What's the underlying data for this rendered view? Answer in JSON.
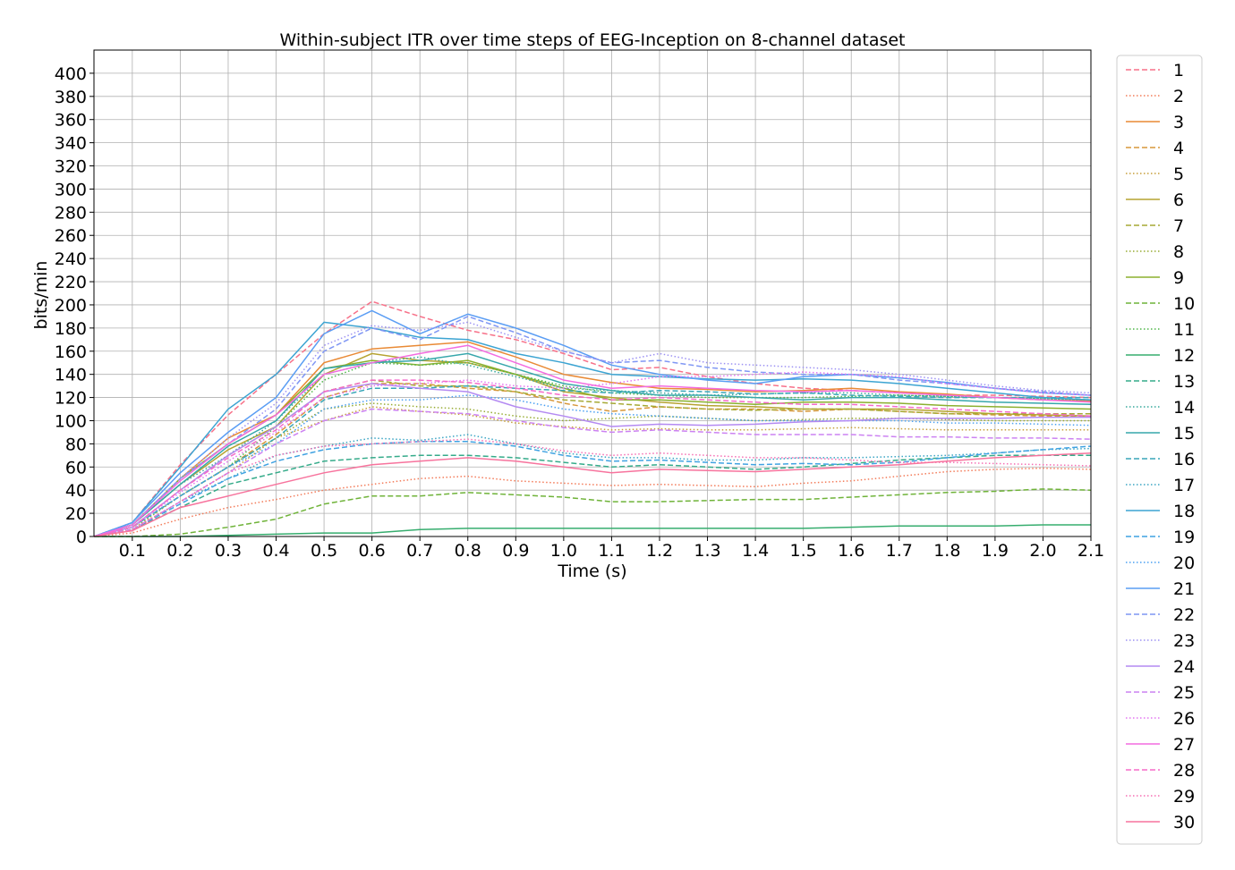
{
  "chart_data": {
    "type": "line",
    "title": "Within-subject ITR over time steps of EEG-Inception on 8-channel dataset",
    "xlabel": "Time (s)",
    "ylabel": "bits/min",
    "xlim": [
      0.02,
      2.1
    ],
    "ylim": [
      0,
      420
    ],
    "x_ticks": [
      0.1,
      0.2,
      0.3,
      0.4,
      0.5,
      0.6,
      0.7,
      0.8,
      0.9,
      1.0,
      1.1,
      1.2,
      1.3,
      1.4,
      1.5,
      1.6,
      1.7,
      1.8,
      1.9,
      2.0,
      2.1
    ],
    "x_tick_labels": [
      "0.1",
      "0.2",
      "0.3",
      "0.4",
      "0.5",
      "0.6",
      "0.7",
      "0.8",
      "0.9",
      "1.0",
      "1.1",
      "1.2",
      "1.3",
      "1.4",
      "1.5",
      "1.6",
      "1.7",
      "1.8",
      "1.9",
      "2.0",
      "2.1"
    ],
    "y_ticks": [
      0,
      20,
      40,
      60,
      80,
      100,
      120,
      140,
      160,
      180,
      200,
      220,
      240,
      260,
      280,
      300,
      320,
      340,
      360,
      380,
      400
    ],
    "y_tick_labels": [
      "0",
      "20",
      "40",
      "60",
      "80",
      "100",
      "120",
      "140",
      "160",
      "180",
      "200",
      "220",
      "240",
      "260",
      "280",
      "300",
      "320",
      "340",
      "360",
      "380",
      "400"
    ],
    "grid": true,
    "legend_position": "outside-right",
    "x": [
      0.02,
      0.1,
      0.2,
      0.3,
      0.4,
      0.5,
      0.6,
      0.7,
      0.8,
      0.9,
      1.0,
      1.1,
      1.2,
      1.3,
      1.4,
      1.5,
      1.6,
      1.7,
      1.8,
      1.9,
      2.0,
      2.1
    ],
    "series": [
      {
        "name": "1",
        "color": "#f77189",
        "dash": "dashed",
        "values": [
          0,
          12,
          62,
          105,
          140,
          175,
          203,
          190,
          178,
          170,
          158,
          144,
          146,
          138,
          132,
          128,
          126,
          124,
          122,
          122,
          121,
          120
        ]
      },
      {
        "name": "2",
        "color": "#f37b59",
        "dash": "dotted",
        "values": [
          0,
          3,
          15,
          25,
          32,
          40,
          45,
          50,
          52,
          48,
          46,
          44,
          45,
          44,
          43,
          46,
          48,
          52,
          56,
          58,
          59,
          58
        ]
      },
      {
        "name": "3",
        "color": "#e98a35",
        "dash": "solid",
        "values": [
          0,
          10,
          50,
          85,
          105,
          150,
          162,
          165,
          168,
          155,
          140,
          133,
          128,
          127,
          125,
          126,
          128,
          125,
          123,
          120,
          118,
          117
        ]
      },
      {
        "name": "4",
        "color": "#d7973a",
        "dash": "dashed",
        "values": [
          0,
          8,
          35,
          60,
          88,
          120,
          132,
          132,
          128,
          125,
          115,
          108,
          112,
          110,
          110,
          108,
          110,
          108,
          106,
          105,
          104,
          104
        ]
      },
      {
        "name": "5",
        "color": "#c79e39",
        "dash": "dotted",
        "values": [
          0,
          5,
          30,
          55,
          85,
          100,
          112,
          108,
          105,
          98,
          95,
          92,
          93,
          92,
          92,
          93,
          94,
          93,
          92,
          92,
          92,
          92
        ]
      },
      {
        "name": "6",
        "color": "#b6a331",
        "dash": "solid",
        "values": [
          0,
          10,
          45,
          75,
          95,
          140,
          158,
          152,
          150,
          140,
          125,
          120,
          116,
          113,
          112,
          110,
          110,
          110,
          108,
          106,
          105,
          104
        ]
      },
      {
        "name": "7",
        "color": "#a6a934",
        "dash": "dashed",
        "values": [
          0,
          8,
          40,
          70,
          95,
          125,
          135,
          130,
          130,
          125,
          118,
          115,
          112,
          110,
          109,
          110,
          110,
          108,
          106,
          106,
          106,
          106
        ]
      },
      {
        "name": "8",
        "color": "#97ac33",
        "dash": "dotted",
        "values": [
          0,
          6,
          35,
          60,
          85,
          110,
          115,
          112,
          110,
          104,
          100,
          102,
          104,
          102,
          100,
          101,
          102,
          102,
          101,
          100,
          100,
          100
        ]
      },
      {
        "name": "9",
        "color": "#8bb02f",
        "dash": "solid",
        "values": [
          0,
          10,
          50,
          80,
          105,
          145,
          152,
          148,
          152,
          140,
          128,
          118,
          118,
          116,
          114,
          116,
          116,
          115,
          113,
          112,
          111,
          110
        ]
      },
      {
        "name": "10",
        "color": "#6fb339",
        "dash": "dashed",
        "values": [
          0,
          0,
          2,
          8,
          15,
          28,
          35,
          35,
          38,
          36,
          34,
          30,
          30,
          31,
          32,
          32,
          34,
          36,
          38,
          39,
          41,
          40
        ]
      },
      {
        "name": "11",
        "color": "#4fb649",
        "dash": "dotted",
        "values": [
          0,
          8,
          35,
          60,
          95,
          135,
          150,
          148,
          150,
          140,
          130,
          124,
          122,
          120,
          120,
          120,
          121,
          122,
          121,
          120,
          119,
          118
        ]
      },
      {
        "name": "12",
        "color": "#36ad6e",
        "dash": "solid",
        "values": [
          0,
          0,
          0,
          1,
          2,
          3,
          3,
          6,
          7,
          7,
          7,
          7,
          7,
          7,
          7,
          7,
          8,
          9,
          9,
          9,
          10,
          10
        ]
      },
      {
        "name": "13",
        "color": "#35ab8a",
        "dash": "dashed",
        "values": [
          0,
          6,
          25,
          45,
          55,
          65,
          68,
          70,
          70,
          68,
          64,
          60,
          62,
          60,
          58,
          60,
          63,
          66,
          68,
          70,
          70,
          70
        ]
      },
      {
        "name": "14",
        "color": "#36a99c",
        "dash": "dotted",
        "values": [
          0,
          10,
          45,
          70,
          100,
          140,
          150,
          155,
          148,
          138,
          128,
          126,
          124,
          122,
          123,
          124,
          124,
          122,
          121,
          120,
          119,
          118
        ]
      },
      {
        "name": "15",
        "color": "#37a7ab",
        "dash": "solid",
        "values": [
          0,
          10,
          45,
          78,
          100,
          145,
          150,
          152,
          158,
          145,
          132,
          126,
          122,
          122,
          120,
          118,
          120,
          120,
          118,
          116,
          115,
          114
        ]
      },
      {
        "name": "16",
        "color": "#39a6b8",
        "dash": "dashed",
        "values": [
          0,
          8,
          35,
          60,
          85,
          118,
          128,
          128,
          130,
          128,
          126,
          124,
          126,
          125,
          123,
          124,
          122,
          121,
          120,
          120,
          120,
          120
        ]
      },
      {
        "name": "17",
        "color": "#3ba5c4",
        "dash": "dotted",
        "values": [
          0,
          6,
          30,
          50,
          70,
          78,
          85,
          83,
          88,
          80,
          72,
          68,
          68,
          66,
          66,
          68,
          68,
          69,
          70,
          72,
          75,
          76
        ]
      },
      {
        "name": "18",
        "color": "#3ca4d2",
        "dash": "solid",
        "values": [
          0,
          12,
          60,
          110,
          140,
          185,
          180,
          172,
          170,
          158,
          150,
          140,
          138,
          136,
          135,
          136,
          135,
          132,
          128,
          124,
          120,
          118
        ]
      },
      {
        "name": "19",
        "color": "#3fa2e2",
        "dash": "dashed",
        "values": [
          0,
          6,
          28,
          50,
          65,
          75,
          80,
          82,
          82,
          78,
          70,
          65,
          66,
          64,
          62,
          63,
          62,
          64,
          68,
          72,
          75,
          78
        ]
      },
      {
        "name": "20",
        "color": "#4aa0f2",
        "dash": "dotted",
        "values": [
          0,
          8,
          35,
          60,
          80,
          110,
          118,
          118,
          122,
          118,
          110,
          106,
          104,
          102,
          100,
          100,
          100,
          100,
          98,
          98,
          97,
          96
        ]
      },
      {
        "name": "21",
        "color": "#5a9df4",
        "dash": "solid",
        "values": [
          0,
          12,
          55,
          90,
          120,
          175,
          195,
          175,
          192,
          180,
          165,
          148,
          140,
          135,
          132,
          138,
          140,
          137,
          133,
          128,
          124,
          122
        ]
      },
      {
        "name": "22",
        "color": "#7f96f4",
        "dash": "dashed",
        "values": [
          0,
          10,
          50,
          80,
          110,
          160,
          180,
          170,
          190,
          176,
          160,
          150,
          152,
          146,
          142,
          140,
          140,
          135,
          132,
          128,
          125,
          122
        ]
      },
      {
        "name": "23",
        "color": "#9c91f3",
        "dash": "dotted",
        "values": [
          0,
          10,
          50,
          85,
          115,
          165,
          182,
          178,
          185,
          172,
          160,
          150,
          158,
          150,
          148,
          146,
          144,
          140,
          135,
          130,
          126,
          124
        ]
      },
      {
        "name": "24",
        "color": "#b48af2",
        "dash": "solid",
        "values": [
          0,
          8,
          40,
          70,
          95,
          125,
          132,
          128,
          125,
          112,
          104,
          95,
          97,
          96,
          97,
          99,
          100,
          102,
          102,
          102,
          103,
          103
        ]
      },
      {
        "name": "25",
        "color": "#cc82f2",
        "dash": "dashed",
        "values": [
          0,
          6,
          30,
          55,
          80,
          100,
          110,
          108,
          106,
          100,
          94,
          90,
          92,
          90,
          88,
          88,
          88,
          86,
          86,
          85,
          85,
          84
        ]
      },
      {
        "name": "26",
        "color": "#e374f2",
        "dash": "dotted",
        "values": [
          0,
          8,
          38,
          65,
          90,
          120,
          130,
          132,
          135,
          130,
          128,
          132,
          138,
          138,
          140,
          142,
          140,
          138,
          132,
          128,
          124,
          122
        ]
      },
      {
        "name": "27",
        "color": "#f36ce0",
        "dash": "solid",
        "values": [
          0,
          10,
          48,
          80,
          105,
          140,
          150,
          158,
          165,
          150,
          135,
          128,
          130,
          128,
          126,
          125,
          126,
          124,
          122,
          120,
          118,
          116
        ]
      },
      {
        "name": "28",
        "color": "#f56bc9",
        "dash": "dashed",
        "values": [
          0,
          8,
          40,
          68,
          92,
          125,
          135,
          135,
          133,
          128,
          122,
          118,
          120,
          118,
          116,
          114,
          114,
          112,
          110,
          108,
          106,
          104
        ]
      },
      {
        "name": "29",
        "color": "#f66fb4",
        "dash": "dotted",
        "values": [
          0,
          6,
          30,
          55,
          70,
          78,
          80,
          82,
          84,
          80,
          74,
          70,
          72,
          70,
          68,
          68,
          66,
          64,
          64,
          63,
          62,
          61
        ]
      },
      {
        "name": "30",
        "color": "#f7739d",
        "dash": "solid",
        "values": [
          0,
          5,
          25,
          35,
          45,
          55,
          62,
          65,
          68,
          65,
          60,
          55,
          58,
          57,
          56,
          58,
          60,
          62,
          65,
          68,
          70,
          72
        ]
      }
    ]
  }
}
